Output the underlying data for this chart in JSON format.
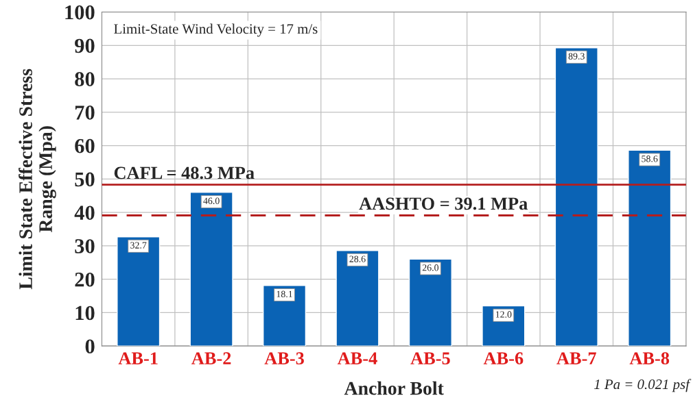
{
  "chart_data": {
    "type": "bar",
    "xlabel": "Anchor Bolt",
    "ylabel": "Limit State Effective Stress\nRange (Mpa)",
    "categories": [
      "AB-1",
      "AB-2",
      "AB-3",
      "AB-4",
      "AB-5",
      "AB-6",
      "AB-7",
      "AB-8"
    ],
    "values": [
      32.7,
      46.0,
      18.1,
      28.6,
      26.0,
      12.0,
      89.3,
      58.6
    ],
    "value_labels": [
      "32.7",
      "46.0",
      "18.1",
      "28.6",
      "26.0",
      "12.0",
      "89.3",
      "58.6"
    ],
    "color": "#0a63b5",
    "ylim": [
      0,
      100
    ],
    "yticks": [
      0,
      10,
      20,
      30,
      40,
      50,
      60,
      70,
      80,
      90,
      100
    ],
    "grid": true,
    "ref_lines": [
      {
        "axis": "y",
        "value": 48.3,
        "label": "CAFL = 48.3 MPa",
        "color": "#b41e1e",
        "line_style": "solid"
      },
      {
        "axis": "y",
        "value": 39.1,
        "label": "AASHTO = 39.1 MPa",
        "color": "#b41e1e",
        "line_style": "dashed"
      }
    ],
    "annotations": [
      "Limit-State Wind Velocity = 17 m/s",
      "1 Pa = 0.021 psf"
    ]
  }
}
